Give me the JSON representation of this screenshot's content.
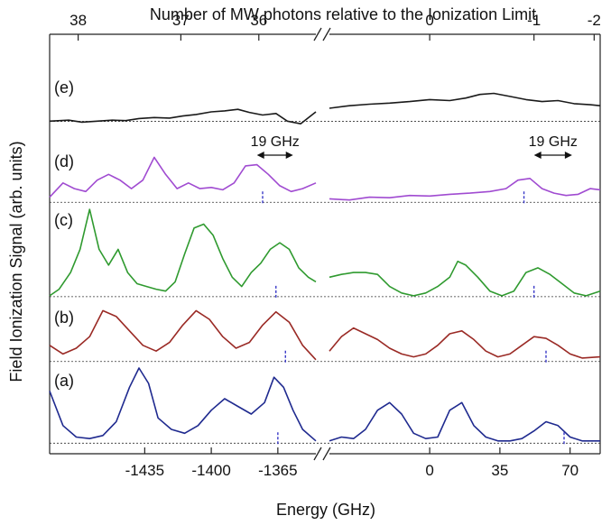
{
  "chart_data": {
    "type": "line",
    "title": "",
    "top_axis": {
      "label": "Number of MW  photons relative to the Ionization Limit",
      "left_ticks": [
        {
          "label": "38",
          "energy": -1470
        },
        {
          "label": "37",
          "energy": -1416
        },
        {
          "label": "36",
          "energy": -1375
        }
      ],
      "right_ticks": [
        {
          "label": "0",
          "energy": 0
        },
        {
          "label": "-1",
          "energy": 52
        },
        {
          "label": "-2",
          "energy": 82
        }
      ]
    },
    "xlabel": "Energy (GHz)",
    "ylabel": "Field Ionization Signal (arb. units)",
    "x_segments": [
      {
        "range": [
          -1485,
          -1345
        ],
        "ticks": [
          -1435,
          -1400,
          -1365
        ],
        "tick_labels": [
          "-1435",
          "-1400",
          "-1365"
        ]
      },
      {
        "range": [
          -50,
          85
        ],
        "ticks": [
          0,
          35,
          70
        ],
        "tick_labels": [
          "0",
          "35",
          "70"
        ]
      }
    ],
    "axis_break": "//",
    "annotations": [
      {
        "label": "19 GHz",
        "panel": "(d)",
        "segment": 0,
        "from": -1376,
        "to": -1357
      },
      {
        "label": "19 GHz",
        "panel": "(d)",
        "segment": 1,
        "from": 52,
        "to": 71
      }
    ],
    "series": [
      {
        "name": "(e)",
        "color": "#1a1a1a",
        "baseline": 0.095,
        "markers": [],
        "segments": [
          {
            "x": [
              -1485,
              -1475,
              -1468,
              -1460,
              -1452,
              -1445,
              -1438,
              -1430,
              -1422,
              -1415,
              -1408,
              -1400,
              -1393,
              -1386,
              -1380,
              -1373,
              -1366,
              -1360,
              -1353,
              -1345
            ],
            "y": [
              0.1,
              0.12,
              0.08,
              0.1,
              0.12,
              0.11,
              0.15,
              0.17,
              0.16,
              0.2,
              0.23,
              0.28,
              0.3,
              0.33,
              0.27,
              0.22,
              0.25,
              0.1,
              0.05,
              0.28
            ]
          },
          {
            "x": [
              -50,
              -40,
              -30,
              -20,
              -10,
              0,
              10,
              18,
              25,
              32,
              40,
              48,
              56,
              64,
              72,
              80,
              85
            ],
            "y": [
              0.35,
              0.4,
              0.43,
              0.45,
              0.48,
              0.52,
              0.5,
              0.55,
              0.62,
              0.64,
              0.58,
              0.52,
              0.48,
              0.5,
              0.44,
              0.42,
              0.4
            ]
          }
        ]
      },
      {
        "name": "(d)",
        "color": "#a04bd1",
        "baseline": 0.06,
        "markers": [
          {
            "segment": 0,
            "x": -1373
          },
          {
            "segment": 1,
            "x": 47
          }
        ],
        "segments": [
          {
            "x": [
              -1485,
              -1478,
              -1472,
              -1466,
              -1460,
              -1454,
              -1448,
              -1442,
              -1436,
              -1430,
              -1424,
              -1418,
              -1412,
              -1406,
              -1400,
              -1394,
              -1388,
              -1382,
              -1376,
              -1370,
              -1364,
              -1358,
              -1352,
              -1345
            ],
            "y": [
              0.15,
              0.4,
              0.3,
              0.25,
              0.45,
              0.55,
              0.45,
              0.3,
              0.45,
              0.85,
              0.55,
              0.3,
              0.4,
              0.3,
              0.32,
              0.28,
              0.4,
              0.7,
              0.72,
              0.55,
              0.35,
              0.25,
              0.3,
              0.4
            ]
          },
          {
            "x": [
              -50,
              -40,
              -30,
              -20,
              -10,
              0,
              10,
              20,
              30,
              38,
              44,
              50,
              56,
              62,
              68,
              74,
              80,
              85
            ],
            "y": [
              0.12,
              0.1,
              0.15,
              0.14,
              0.18,
              0.17,
              0.2,
              0.22,
              0.25,
              0.3,
              0.45,
              0.48,
              0.3,
              0.22,
              0.18,
              0.2,
              0.3,
              0.28
            ]
          }
        ]
      },
      {
        "name": "(c)",
        "color": "#2f9a2f",
        "baseline": 0.04,
        "markers": [
          {
            "segment": 0,
            "x": -1366
          },
          {
            "segment": 1,
            "x": 52
          }
        ],
        "segments": [
          {
            "x": [
              -1485,
              -1480,
              -1474,
              -1469,
              -1464,
              -1459,
              -1454,
              -1449,
              -1444,
              -1439,
              -1434,
              -1429,
              -1424,
              -1419,
              -1414,
              -1409,
              -1404,
              -1399,
              -1394,
              -1389,
              -1384,
              -1379,
              -1374,
              -1369,
              -1364,
              -1359,
              -1354,
              -1349,
              -1345
            ],
            "y": [
              0.05,
              0.12,
              0.3,
              0.55,
              0.98,
              0.55,
              0.38,
              0.55,
              0.3,
              0.18,
              0.15,
              0.12,
              0.1,
              0.2,
              0.5,
              0.78,
              0.82,
              0.7,
              0.45,
              0.25,
              0.15,
              0.3,
              0.4,
              0.55,
              0.62,
              0.55,
              0.35,
              0.25,
              0.2
            ]
          },
          {
            "x": [
              -50,
              -44,
              -38,
              -32,
              -26,
              -20,
              -14,
              -8,
              -2,
              4,
              10,
              14,
              18,
              24,
              30,
              36,
              42,
              48,
              54,
              60,
              66,
              72,
              78,
              85
            ],
            "y": [
              0.25,
              0.28,
              0.3,
              0.3,
              0.28,
              0.15,
              0.08,
              0.05,
              0.08,
              0.15,
              0.25,
              0.42,
              0.38,
              0.25,
              0.1,
              0.05,
              0.1,
              0.3,
              0.35,
              0.28,
              0.18,
              0.08,
              0.05,
              0.1
            ]
          }
        ]
      },
      {
        "name": "(b)",
        "color": "#9a2a25",
        "baseline": 0.02,
        "markers": [
          {
            "segment": 0,
            "x": -1361
          },
          {
            "segment": 1,
            "x": 58
          }
        ],
        "segments": [
          {
            "x": [
              -1485,
              -1478,
              -1471,
              -1464,
              -1457,
              -1450,
              -1443,
              -1436,
              -1429,
              -1422,
              -1415,
              -1408,
              -1401,
              -1394,
              -1387,
              -1380,
              -1373,
              -1366,
              -1359,
              -1352,
              -1345
            ],
            "y": [
              0.3,
              0.15,
              0.25,
              0.45,
              0.9,
              0.8,
              0.55,
              0.3,
              0.2,
              0.35,
              0.65,
              0.9,
              0.75,
              0.45,
              0.25,
              0.35,
              0.65,
              0.88,
              0.7,
              0.3,
              0.05
            ]
          },
          {
            "x": [
              -50,
              -44,
              -38,
              -32,
              -26,
              -20,
              -14,
              -8,
              -2,
              4,
              10,
              16,
              22,
              28,
              34,
              40,
              46,
              52,
              58,
              64,
              70,
              76,
              85
            ],
            "y": [
              0.2,
              0.45,
              0.6,
              0.5,
              0.4,
              0.25,
              0.15,
              0.1,
              0.15,
              0.3,
              0.5,
              0.55,
              0.4,
              0.2,
              0.1,
              0.15,
              0.3,
              0.45,
              0.42,
              0.3,
              0.15,
              0.08,
              0.1
            ]
          }
        ]
      },
      {
        "name": "(a)",
        "color": "#1f2a8f",
        "baseline": 0.02,
        "markers": [
          {
            "segment": 0,
            "x": -1365
          },
          {
            "segment": 1,
            "x": 67
          }
        ],
        "segments": [
          {
            "x": [
              -1485,
              -1478,
              -1471,
              -1464,
              -1457,
              -1450,
              -1443,
              -1438,
              -1433,
              -1428,
              -1421,
              -1414,
              -1407,
              -1400,
              -1393,
              -1386,
              -1379,
              -1372,
              -1367,
              -1362,
              -1357,
              -1352,
              -1345
            ],
            "y": [
              0.7,
              0.25,
              0.1,
              0.08,
              0.12,
              0.3,
              0.75,
              1.0,
              0.8,
              0.35,
              0.2,
              0.15,
              0.25,
              0.45,
              0.6,
              0.5,
              0.4,
              0.55,
              0.88,
              0.75,
              0.45,
              0.2,
              0.05
            ]
          },
          {
            "x": [
              -50,
              -44,
              -38,
              -32,
              -26,
              -20,
              -14,
              -8,
              -2,
              4,
              10,
              16,
              22,
              28,
              34,
              40,
              46,
              52,
              58,
              64,
              70,
              76,
              85
            ],
            "y": [
              0.05,
              0.1,
              0.08,
              0.2,
              0.45,
              0.55,
              0.4,
              0.15,
              0.08,
              0.1,
              0.45,
              0.55,
              0.25,
              0.1,
              0.05,
              0.05,
              0.08,
              0.18,
              0.3,
              0.25,
              0.1,
              0.05,
              0.05
            ]
          }
        ]
      }
    ]
  }
}
